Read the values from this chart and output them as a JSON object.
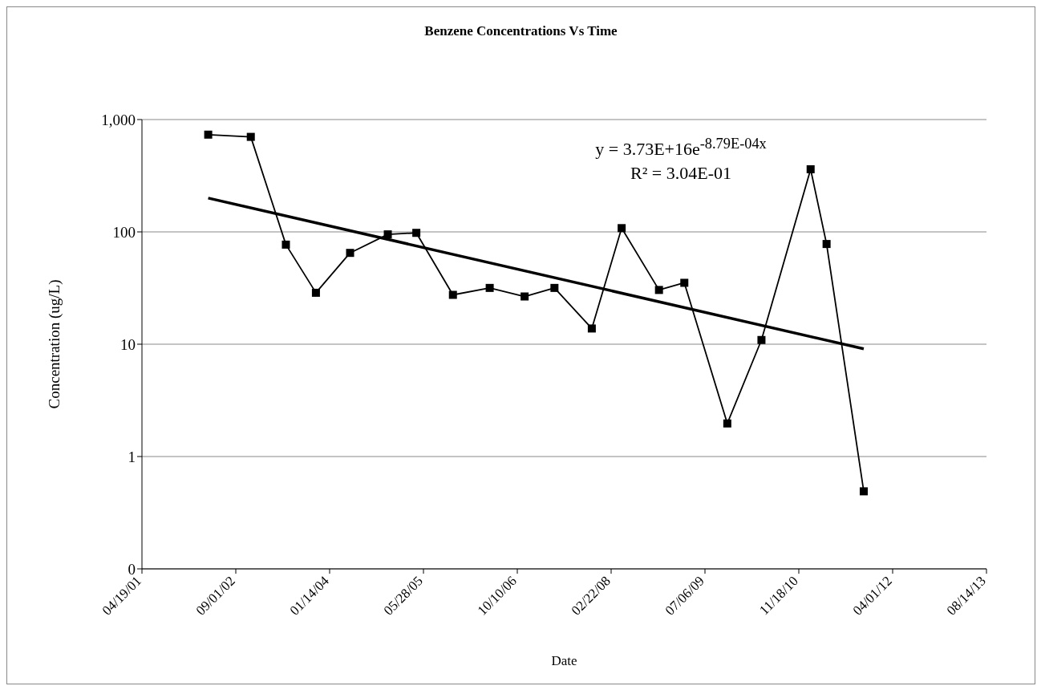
{
  "chart_data": {
    "type": "line",
    "title": "Benzene Concentrations Vs Time",
    "xlabel": "Date",
    "ylabel": "Concentration (ug/L)",
    "annotations": [
      "y = 3.73E+16e$^{-8.79E-04x}$",
      "R² = 3.04E-01"
    ],
    "series": [
      {
        "color": "#000000",
        "marker": "square",
        "x": [
          "2002-04-07",
          "2002-11-20",
          "2003-05-26",
          "2003-11-02",
          "2004-05-02",
          "2004-11-19",
          "2005-04-20",
          "2005-11-01",
          "2006-05-16",
          "2006-11-18",
          "2007-04-26",
          "2007-11-11",
          "2008-04-18",
          "2008-11-03",
          "2009-03-18",
          "2009-11-02",
          "2010-05-03",
          "2011-01-20",
          "2011-04-15",
          "2011-10-30"
        ],
        "values": [
          734,
          701,
          77,
          28.7,
          65,
          95,
          98,
          27.5,
          31.7,
          26.6,
          31.7,
          13.8,
          108,
          30.4,
          35.2,
          1.97,
          10.9,
          361,
          78,
          0.49
        ]
      },
      {
        "type": "line",
        "color": "#000000",
        "marker": "none",
        "x": [
          "2002-04-07",
          "2011-10-30"
        ],
        "values": [
          200,
          9.1
        ]
      }
    ],
    "xlim": [
      "2001-04-19",
      "2013-08-14"
    ],
    "xticks": [
      {
        "value": "2001-04-19",
        "label": "04/19/01"
      },
      {
        "value": "2002-09-01",
        "label": "09/01/02"
      },
      {
        "value": "2004-01-14",
        "label": "01/14/04"
      },
      {
        "value": "2005-05-28",
        "label": "05/28/05"
      },
      {
        "value": "2006-10-10",
        "label": "10/10/06"
      },
      {
        "value": "2008-02-22",
        "label": "02/22/08"
      },
      {
        "value": "2009-07-06",
        "label": "07/06/09"
      },
      {
        "value": "2010-11-18",
        "label": "11/18/10"
      },
      {
        "value": "2012-04-01",
        "label": "04/01/12"
      },
      {
        "value": "2013-08-14",
        "label": "08/14/13"
      }
    ],
    "ylim": [
      0.1,
      1000
    ],
    "yticks": [
      {
        "value": 0.1,
        "label": "0"
      },
      1,
      10,
      100,
      {
        "value": 1000,
        "label": "1,000"
      }
    ],
    "log": true,
    "grid": "y"
  }
}
